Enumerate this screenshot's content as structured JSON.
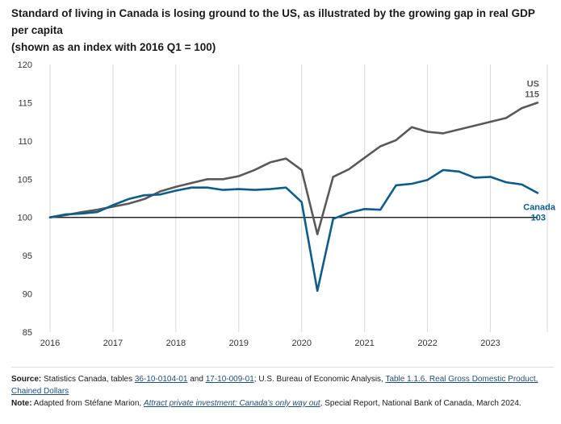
{
  "title_line1": "Standard of living in Canada is losing ground to the US, as illustrated by the growing gap in real GDP per capita",
  "title_line2": "(shown as an index with 2016 Q1 = 100)",
  "colors": {
    "us": "#595959",
    "canada": "#0e5c8a",
    "baseline": "#000000",
    "grid": "#d9d9d9"
  },
  "chart_data": {
    "type": "line",
    "title": "Standard of living in Canada is losing ground to the US, as illustrated by the growing gap in real GDP per capita (shown as an index with 2016 Q1 = 100)",
    "xlabel": "",
    "ylabel": "",
    "ylim": [
      85,
      120
    ],
    "yticks": [
      85,
      90,
      95,
      100,
      105,
      110,
      115,
      120
    ],
    "xticks": [
      "2016",
      "2017",
      "2018",
      "2019",
      "2020",
      "2021",
      "2022",
      "2023"
    ],
    "grid": "vertical",
    "x": [
      "2016 Q1",
      "2016 Q2",
      "2016 Q3",
      "2016 Q4",
      "2017 Q1",
      "2017 Q2",
      "2017 Q3",
      "2017 Q4",
      "2018 Q1",
      "2018 Q2",
      "2018 Q3",
      "2018 Q4",
      "2019 Q1",
      "2019 Q2",
      "2019 Q3",
      "2019 Q4",
      "2020 Q1",
      "2020 Q2",
      "2020 Q3",
      "2020 Q4",
      "2021 Q1",
      "2021 Q2",
      "2021 Q3",
      "2021 Q4",
      "2022 Q1",
      "2022 Q2",
      "2022 Q3",
      "2022 Q4",
      "2023 Q1",
      "2023 Q2",
      "2023 Q3",
      "2023 Q4"
    ],
    "reference_line": 100,
    "series": [
      {
        "name": "US",
        "end_label": "115",
        "values": [
          100.0,
          100.3,
          100.7,
          101.0,
          101.4,
          101.8,
          102.4,
          103.4,
          104.0,
          104.5,
          105.0,
          105.0,
          105.4,
          106.2,
          107.2,
          107.7,
          106.2,
          97.8,
          105.3,
          106.3,
          107.8,
          109.3,
          110.1,
          111.8,
          111.2,
          111.0,
          111.5,
          112.0,
          112.5,
          113.0,
          114.3,
          115.0
        ]
      },
      {
        "name": "Canada",
        "end_label": "103",
        "values": [
          100.0,
          100.4,
          100.5,
          100.7,
          101.6,
          102.4,
          102.9,
          103.0,
          103.5,
          103.9,
          103.9,
          103.6,
          103.7,
          103.6,
          103.7,
          103.9,
          102.0,
          90.4,
          99.8,
          100.6,
          101.1,
          101.0,
          104.2,
          104.4,
          104.9,
          106.2,
          106.0,
          105.2,
          105.3,
          104.6,
          104.3,
          103.2
        ]
      }
    ]
  },
  "footer": {
    "source_label": "Source:",
    "source_text1": " Statistics Canada, tables ",
    "source_link1": "36-10-0104-01",
    "source_text2": " and ",
    "source_link2": "17-10-009-01",
    "source_text3": "; U.S. Bureau of Economic Analysis, ",
    "source_link3": "Table 1.1.6. Real Gross Domestic Product, Chained Dollars",
    "note_label": "Note:",
    "note_text1": " Adapted from Stéfane Marion, ",
    "note_link": "Attract private investment: Canada's only way out",
    "note_text2": ", Special Report, National Bank of Canada, March 2024."
  }
}
